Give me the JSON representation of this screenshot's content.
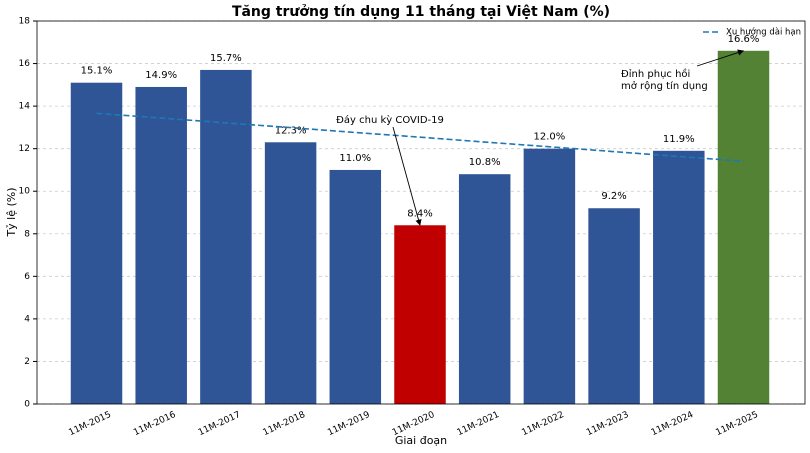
{
  "chart_data": {
    "type": "bar",
    "title": "Tăng trưởng tín dụng 11 tháng tại Việt Nam (%)",
    "x_label": "Giai đoạn",
    "y_label": "Tỷ lệ (%)",
    "categories": [
      "11M-2015",
      "11M-2016",
      "11M-2017",
      "11M-2018",
      "11M-2019",
      "11M-2020",
      "11M-2021",
      "11M-2022",
      "11M-2023",
      "11M-2024",
      "11M-2025"
    ],
    "values": [
      15.1,
      14.9,
      15.7,
      12.3,
      11.0,
      8.4,
      10.8,
      12.0,
      9.2,
      11.9,
      16.6
    ],
    "value_labels": [
      "15.1%",
      "14.9%",
      "15.7%",
      "12.3%",
      "11.0%",
      "8.4%",
      "10.8%",
      "12.0%",
      "9.2%",
      "11.9%",
      "16.6%"
    ],
    "colors": [
      "#2f5597",
      "#2f5597",
      "#2f5597",
      "#2f5597",
      "#2f5597",
      "#c00000",
      "#2f5597",
      "#2f5597",
      "#2f5597",
      "#2f5597",
      "#548235"
    ],
    "series": [
      {
        "name": "Xu hướng dài hạn",
        "type": "line",
        "color": "#1f77b4",
        "values": [
          13.66,
          13.44,
          13.21,
          12.99,
          12.76,
          12.54,
          12.31,
          12.09,
          11.86,
          11.63,
          11.41
        ]
      }
    ],
    "annotations": [
      [
        "Đáy chu kỳ COVID-19"
      ],
      [
        "Đỉnh phục hồi",
        "mở rộng tín dụng"
      ]
    ],
    "ylim": [
      0,
      18
    ],
    "yticks": [
      0,
      2,
      4,
      6,
      8,
      10,
      12,
      14,
      16,
      18
    ],
    "grid": true,
    "legend": "upper right"
  }
}
